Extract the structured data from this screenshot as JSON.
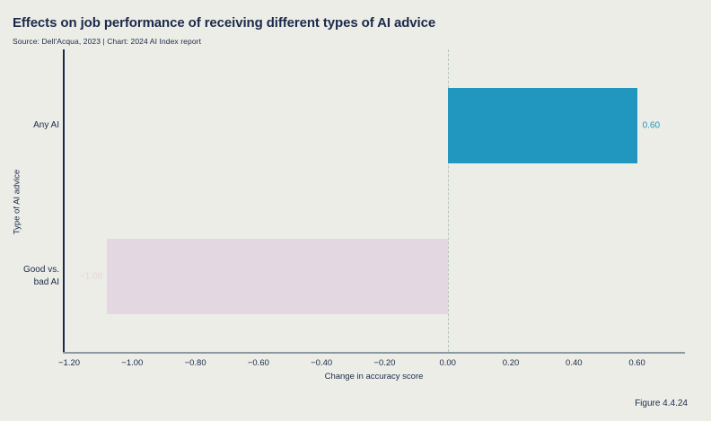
{
  "page": {
    "title": "Effects on job performance of receiving different types of AI advice",
    "subtitle": "Source: Dell'Acqua, 2023 | Chart: 2024 AI Index report",
    "figure_label": "Figure 4.4.24"
  },
  "colors": {
    "background": "#ECEDE7",
    "text": "#1B2A4A",
    "positive_bar": "#2196BE",
    "negative_bar": "#E3D7E1",
    "positive_value_label": "#2196BE",
    "negative_value_label": "#E7D4E0",
    "zero_line": "#B7C4BF",
    "x_axis_line": "#8D98A0",
    "y_axis_line": "#1B2A4A"
  },
  "chart_data": {
    "type": "bar",
    "orientation": "horizontal",
    "title": "Effects on job performance of receiving different types of AI advice",
    "categories": [
      "Any AI",
      "Good vs. bad AI"
    ],
    "category_display": [
      "Any AI",
      "Good vs.\nbad AI"
    ],
    "values": [
      0.6,
      -1.08
    ],
    "value_labels": [
      "0.60",
      "−1.08"
    ],
    "bar_colors": [
      "#2196BE",
      "#E3D7E1"
    ],
    "value_label_colors": [
      "#2196BE",
      "#E7D4E0"
    ],
    "xlabel": "Change in accuracy score",
    "ylabel": "Type of AI advice",
    "xlim": [
      -1.22,
      0.752
    ],
    "x_ticks": [
      -1.2,
      -1.0,
      -0.8,
      -0.6,
      -0.4,
      -0.2,
      0.0,
      0.2,
      0.4,
      0.6
    ],
    "x_tick_labels": [
      "−1.20",
      "−1.00",
      "−0.80",
      "−0.60",
      "−0.40",
      "−0.20",
      "0.00",
      "0.20",
      "0.40",
      "0.60"
    ],
    "zero_line": true,
    "grid": false,
    "legend": "none"
  }
}
